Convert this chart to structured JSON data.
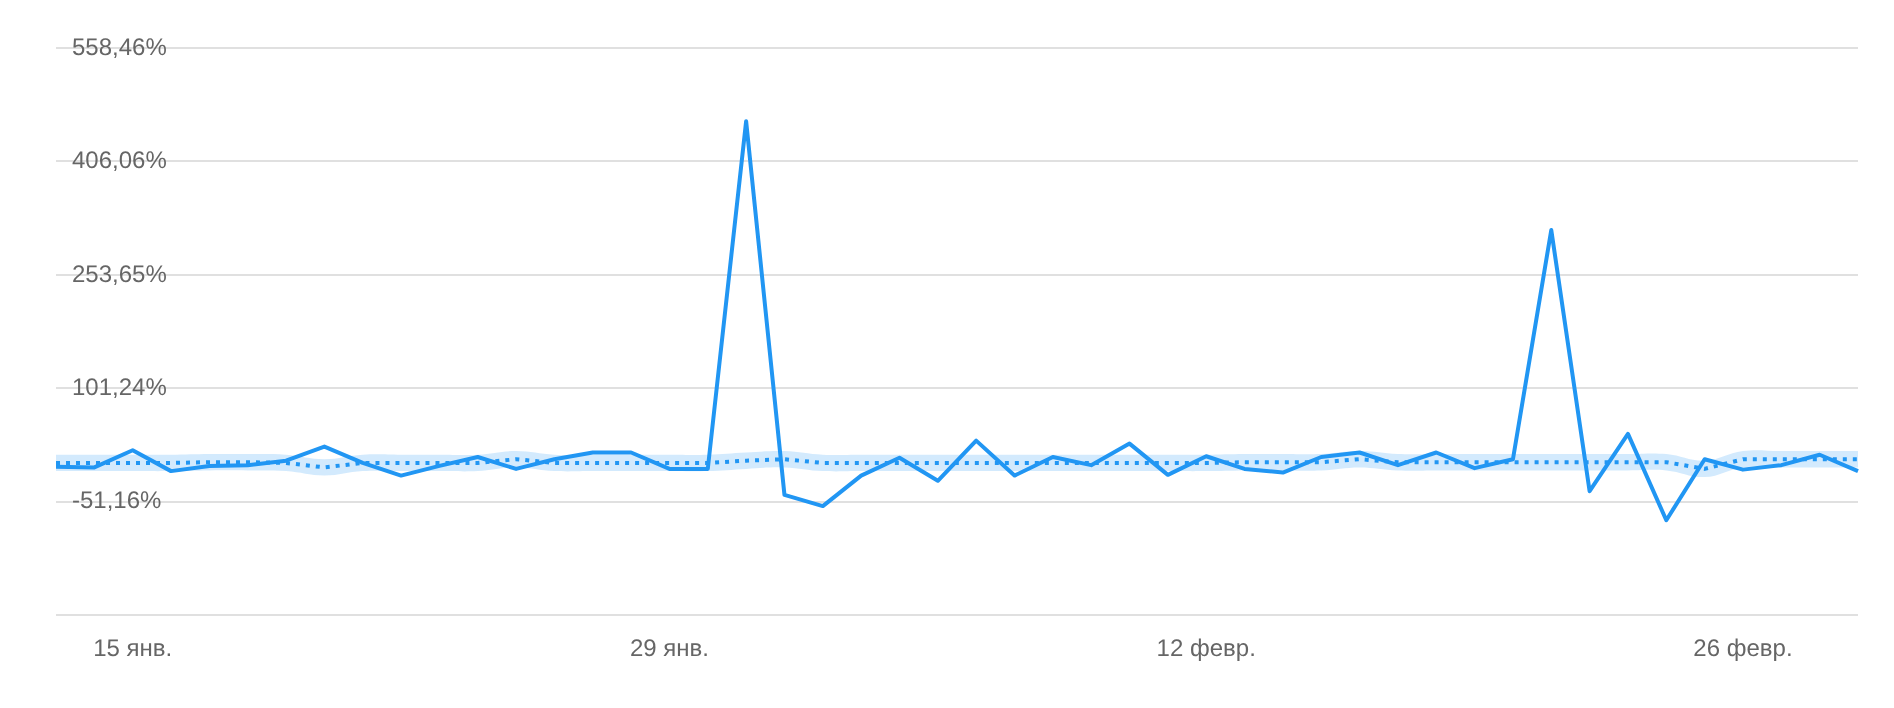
{
  "chart_data": {
    "type": "line",
    "categories": [
      null,
      null,
      "15 янв.",
      null,
      null,
      null,
      null,
      null,
      null,
      null,
      null,
      null,
      null,
      null,
      null,
      null,
      "29 янв.",
      null,
      null,
      null,
      null,
      null,
      null,
      null,
      null,
      null,
      null,
      null,
      null,
      null,
      "12 февр.",
      null,
      null,
      null,
      null,
      null,
      null,
      null,
      null,
      null,
      null,
      null,
      null,
      null,
      "26 февр.",
      null,
      null,
      null
    ],
    "series": [
      {
        "color": "#2196f3",
        "line_style": "dotted",
        "values": [
          1,
          1,
          1,
          1,
          2,
          2,
          1,
          -5,
          1,
          1,
          1,
          1,
          6,
          1,
          1,
          1,
          1,
          1,
          4,
          6,
          1,
          1,
          1,
          1,
          1,
          1,
          1,
          1,
          1,
          1,
          1,
          2,
          2,
          2,
          6,
          2,
          2,
          2,
          2,
          2,
          2,
          2,
          2,
          -7,
          6,
          6,
          6,
          6
        ],
        "lower": [
          -10,
          -10,
          -10,
          -10,
          -9,
          -9,
          -10,
          -16,
          -10,
          -10,
          -10,
          -10,
          -5,
          -10,
          -10,
          -10,
          -10,
          -10,
          -7,
          -5,
          -10,
          -10,
          -10,
          -10,
          -10,
          -10,
          -10,
          -10,
          -10,
          -10,
          -10,
          -9,
          -9,
          -9,
          -5,
          -9,
          -9,
          -9,
          -9,
          -9,
          -9,
          -9,
          -9,
          -18,
          -5,
          -5,
          -5,
          -5
        ],
        "upper": [
          12,
          12,
          12,
          12,
          13,
          13,
          12,
          6,
          12,
          12,
          12,
          12,
          17,
          12,
          12,
          12,
          12,
          12,
          15,
          17,
          12,
          12,
          12,
          12,
          12,
          12,
          12,
          12,
          12,
          12,
          12,
          13,
          13,
          13,
          17,
          13,
          13,
          13,
          13,
          13,
          13,
          13,
          13,
          4,
          17,
          17,
          17,
          17
        ]
      },
      {
        "color": "#2196f3",
        "line_style": "solid",
        "values": [
          -4,
          -5,
          18,
          -10,
          -3,
          -2,
          4,
          23,
          1,
          -16,
          -3,
          9,
          -7,
          6,
          15,
          15,
          -7,
          -7,
          460,
          -42,
          -57,
          -16,
          8,
          -23,
          31,
          -16,
          9,
          -2,
          27,
          -15,
          10,
          -7,
          -12,
          9,
          15,
          -2,
          15,
          -6,
          6,
          314,
          -37,
          40,
          -76,
          6,
          -8,
          -2,
          12,
          -10
        ]
      }
    ],
    "marker": "none",
    "ylim": [
      -203.57,
      558.46
    ],
    "yticks": [
      {
        "value": -203.57,
        "label": null
      },
      {
        "value": -51.16,
        "label": "-51,16%"
      },
      {
        "value": 101.24,
        "label": "101,24%"
      },
      {
        "value": 253.65,
        "label": "253,65%"
      },
      {
        "value": 406.06,
        "label": "406,06%"
      },
      {
        "value": 558.46,
        "label": "558,46%"
      }
    ],
    "grid": "y"
  }
}
